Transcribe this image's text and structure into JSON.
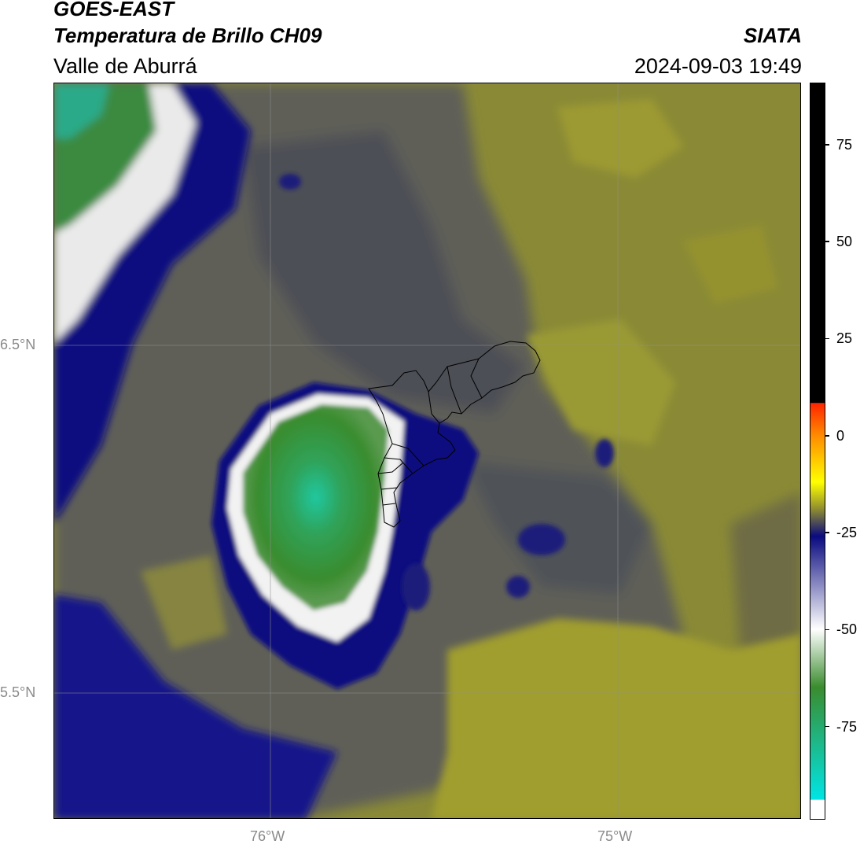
{
  "header": {
    "title_line1": "GOES-EAST",
    "title_line2": "Temperatura de Brillo CH09",
    "region": "Valle de Aburrá",
    "agency": "SIATA",
    "timestamp": "2024-09-03 19:49"
  },
  "map": {
    "lat_labels": [
      "6.5°N",
      "5.5°N"
    ],
    "lon_labels": [
      "76°W",
      "75°W"
    ],
    "gridline_color": "#8f8f8f"
  },
  "colorbar": {
    "tick_labels": [
      "75",
      "50",
      "25",
      "0",
      "-25",
      "-50",
      "-75"
    ],
    "tick_values": [
      75,
      50,
      25,
      0,
      -25,
      -50,
      -75
    ],
    "range": [
      -99,
      91
    ]
  },
  "palette": {
    "black": "#000000",
    "red": "#ff2400",
    "orange": "#ff8c00",
    "yellow": "#ffff00",
    "olive": "#8e8c30",
    "navy": "#0a0a80",
    "white": "#ffffff",
    "green": "#3a8c2e",
    "cyan": "#00e5e5"
  }
}
